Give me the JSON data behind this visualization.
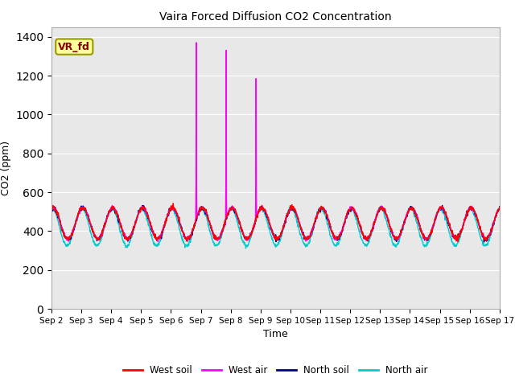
{
  "title": "Vaira Forced Diffusion CO2 Concentration",
  "xlabel": "Time",
  "ylabel": "CO2 (ppm)",
  "ylim": [
    0,
    1450
  ],
  "yticks": [
    0,
    200,
    400,
    600,
    800,
    1000,
    1200,
    1400
  ],
  "legend_entries": [
    "West soil",
    "West air",
    "North soil",
    "North air"
  ],
  "legend_colors": [
    "#ff0000",
    "#ff00ff",
    "#00008b",
    "#00cccc"
  ],
  "vr_fd_label": "VR_fd",
  "vr_fd_bg": "#ffff99",
  "vr_fd_border": "#999900",
  "vr_fd_text_color": "#8b0000",
  "plot_bg": "#e8e8e8",
  "fig_bg": "#ffffff",
  "spike1_day": 4.85,
  "spike1_val": 1370,
  "spike2_day": 5.85,
  "spike2_val": 1330,
  "spike3_day": 6.85,
  "spike3_val": 1185,
  "n_days": 15,
  "start_day": 2,
  "end_day": 17
}
